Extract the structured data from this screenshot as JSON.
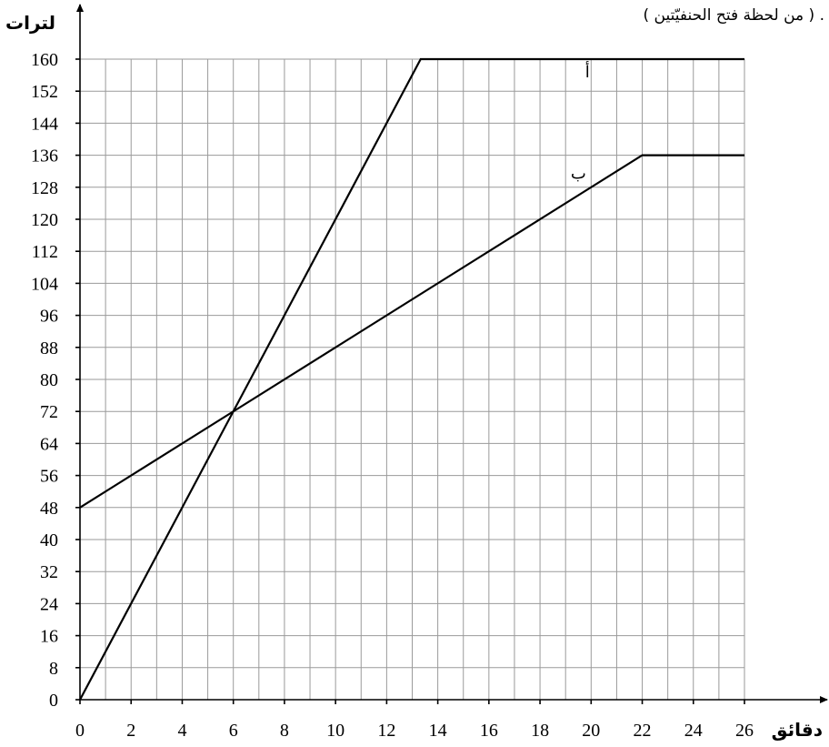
{
  "caption": "( من لحظة فتح الحنفيّتين ) .",
  "chart_data": {
    "type": "line",
    "xlabel": "دقائق",
    "ylabel": "لترات",
    "xlim": [
      0,
      26
    ],
    "ylim": [
      0,
      160
    ],
    "x_ticks": [
      0,
      2,
      4,
      6,
      8,
      10,
      12,
      14,
      16,
      18,
      20,
      22,
      24,
      26
    ],
    "y_ticks": [
      0,
      8,
      16,
      24,
      32,
      40,
      48,
      56,
      64,
      72,
      80,
      88,
      96,
      104,
      112,
      120,
      128,
      136,
      144,
      152,
      160
    ],
    "grid": true,
    "series": [
      {
        "name": "أ",
        "x": [
          0,
          13.33,
          26
        ],
        "y": [
          0,
          160,
          160
        ]
      },
      {
        "name": "ب",
        "x": [
          0,
          22,
          26
        ],
        "y": [
          48,
          136,
          136
        ]
      }
    ]
  }
}
